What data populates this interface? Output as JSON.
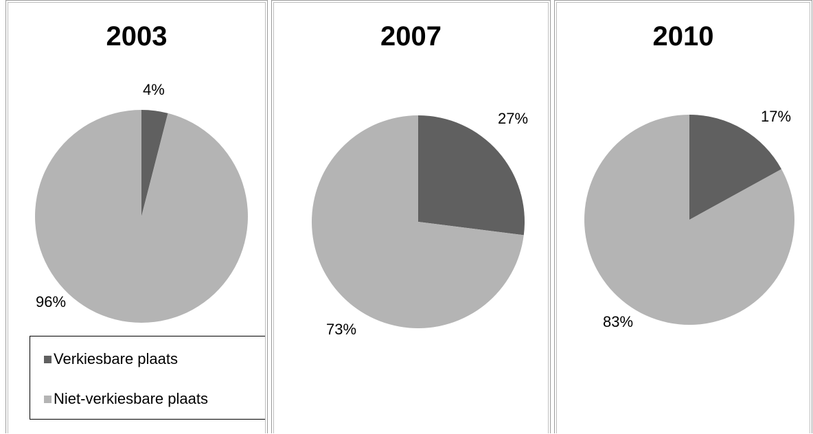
{
  "chart_data": [
    {
      "type": "pie",
      "title": "2003",
      "categories": [
        "Verkiesbare plaats",
        "Niet-verkiesbare plaats"
      ],
      "values": [
        4,
        96
      ],
      "value_labels": [
        "4%",
        "96%"
      ],
      "colors": [
        "#606060",
        "#b4b4b4"
      ]
    },
    {
      "type": "pie",
      "title": "2007",
      "categories": [
        "Verkiesbare plaats",
        "Niet-verkiesbare plaats"
      ],
      "values": [
        27,
        73
      ],
      "value_labels": [
        "27%",
        "73%"
      ],
      "colors": [
        "#606060",
        "#b4b4b4"
      ]
    },
    {
      "type": "pie",
      "title": "2010",
      "categories": [
        "Verkiesbare plaats",
        "Niet-verkiesbare plaats"
      ],
      "values": [
        17,
        83
      ],
      "value_labels": [
        "17%",
        "83%"
      ],
      "colors": [
        "#606060",
        "#b4b4b4"
      ]
    }
  ],
  "legend": {
    "placement": "bottom-left of first panel",
    "items": [
      {
        "label": "Verkiesbare plaats",
        "color": "#606060"
      },
      {
        "label": "Niet-verkiesbare plaats",
        "color": "#b4b4b4"
      }
    ]
  }
}
